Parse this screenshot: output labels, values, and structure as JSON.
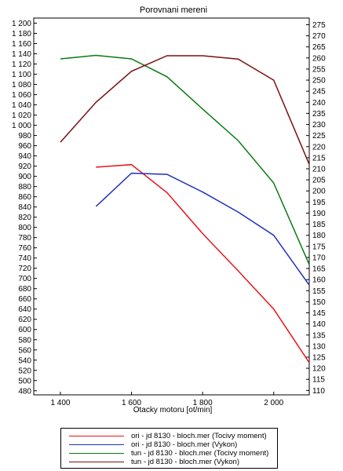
{
  "chart_data": {
    "type": "line",
    "title": "Porovnani mereni",
    "xlabel": "Otacky motoru [ot/min]",
    "ylabel_left": "",
    "ylabel_right": "",
    "xlim": [
      1325,
      2100
    ],
    "ylim_left": [
      472,
      1210
    ],
    "ylim_right": [
      108,
      278
    ],
    "x_ticks": [
      1400,
      1600,
      1800,
      2000
    ],
    "x_tick_labels": [
      "1 400",
      "1 600",
      "1 800",
      "2 000"
    ],
    "y_left_ticks": [
      480,
      500,
      520,
      540,
      560,
      580,
      600,
      620,
      640,
      660,
      680,
      700,
      720,
      740,
      760,
      780,
      800,
      820,
      840,
      860,
      880,
      900,
      920,
      940,
      960,
      980,
      1000,
      1020,
      1040,
      1060,
      1080,
      1100,
      1120,
      1140,
      1160,
      1180,
      1200
    ],
    "y_left_tick_labels": [
      "480",
      "500",
      "520",
      "540",
      "560",
      "580",
      "600",
      "620",
      "640",
      "660",
      "680",
      "700",
      "720",
      "740",
      "760",
      "780",
      "800",
      "820",
      "840",
      "860",
      "880",
      "900",
      "920",
      "940",
      "960",
      "980",
      "1 000",
      "1 020",
      "1 040",
      "1 060",
      "1 080",
      "1 100",
      "1 120",
      "1 140",
      "1 160",
      "1 180",
      "1 200"
    ],
    "y_right_ticks": [
      110,
      115,
      120,
      125,
      130,
      135,
      140,
      145,
      150,
      155,
      160,
      165,
      170,
      175,
      180,
      185,
      190,
      195,
      200,
      205,
      210,
      215,
      220,
      225,
      230,
      235,
      240,
      245,
      250,
      255,
      260,
      265,
      270,
      275
    ],
    "grid": false,
    "legend_position": "bottom",
    "series": [
      {
        "name": "ori - jd 8130 - bloch.mer  (Tocivy moment)",
        "axis": "left",
        "color": "#e8141c",
        "x": [
          1500,
          1600,
          1700,
          1800,
          1900,
          2000,
          2100
        ],
        "y": [
          918,
          923,
          868,
          788,
          715,
          640,
          535
        ]
      },
      {
        "name": "ori - jd 8130 - bloch.mer  (Vykon)",
        "axis": "right",
        "color": "#1f2fbf",
        "x": [
          1500,
          1600,
          1700,
          1800,
          1900,
          2000,
          2100
        ],
        "y": [
          193,
          208,
          207.5,
          199.5,
          190.5,
          180,
          157.5
        ]
      },
      {
        "name": "tun - jd 8130 - bloch.mer  (Tocivy moment)",
        "axis": "left",
        "color": "#0a7a14",
        "x": [
          1400,
          1500,
          1600,
          1700,
          1800,
          1900,
          2000,
          2100
        ],
        "y": [
          1130,
          1137,
          1130,
          1095,
          1032,
          970,
          887,
          727
        ]
      },
      {
        "name": "tun - jd 8130 - bloch.mer  (Vykon)",
        "axis": "right",
        "color": "#7a1010",
        "x": [
          1400,
          1500,
          1600,
          1700,
          1800,
          1900,
          2000,
          2100
        ],
        "y": [
          222,
          240,
          254,
          261,
          261,
          259.5,
          250,
          212
        ]
      }
    ]
  }
}
